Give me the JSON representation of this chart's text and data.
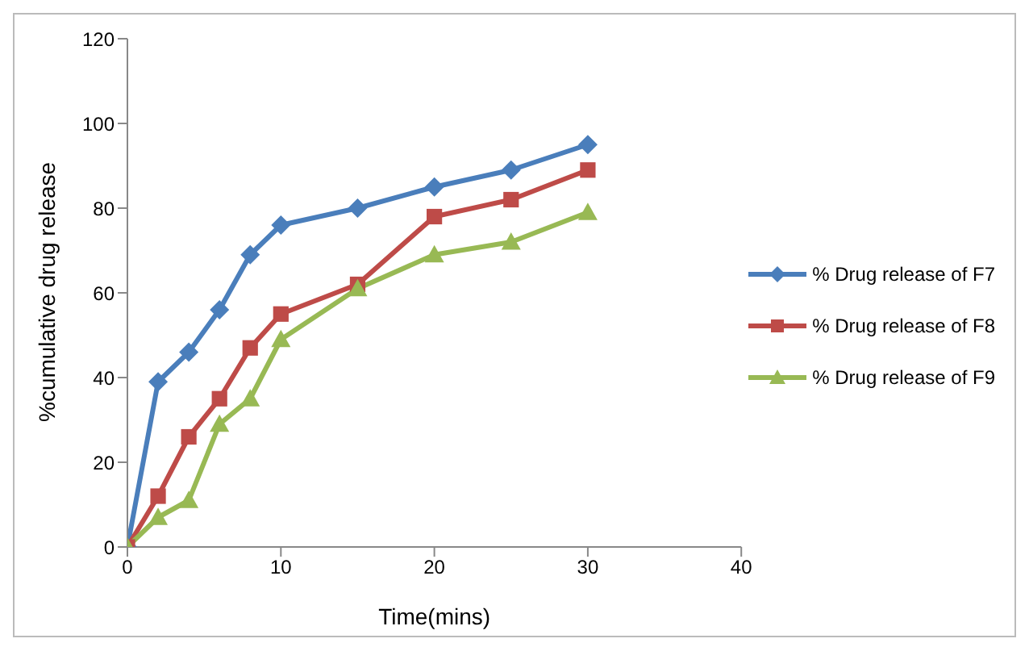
{
  "chart_data": {
    "type": "line",
    "xlabel": "Time(mins)",
    "ylabel": "%cumulative drug release",
    "x": [
      0,
      2,
      4,
      6,
      8,
      10,
      15,
      20,
      25,
      30
    ],
    "xlim": [
      0,
      40
    ],
    "xticks": [
      0,
      10,
      20,
      30,
      40
    ],
    "ylim": [
      0,
      120
    ],
    "yticks": [
      0,
      20,
      40,
      60,
      80,
      100,
      120
    ],
    "grid": false,
    "legend": "right",
    "series": [
      {
        "name": "% Drug release of F7",
        "color": "#4a7ebb",
        "marker": "diamond",
        "values": [
          0,
          39,
          46,
          56,
          69,
          76,
          80,
          85,
          89,
          95
        ]
      },
      {
        "name": "% Drug release of F8",
        "color": "#be4b48",
        "marker": "square",
        "values": [
          0,
          12,
          26,
          35,
          47,
          55,
          62,
          78,
          82,
          89
        ]
      },
      {
        "name": "% Drug release of F9",
        "color": "#98b954",
        "marker": "triangle",
        "values": [
          0,
          7,
          11,
          29,
          35,
          49,
          61,
          69,
          72,
          79
        ]
      }
    ]
  }
}
